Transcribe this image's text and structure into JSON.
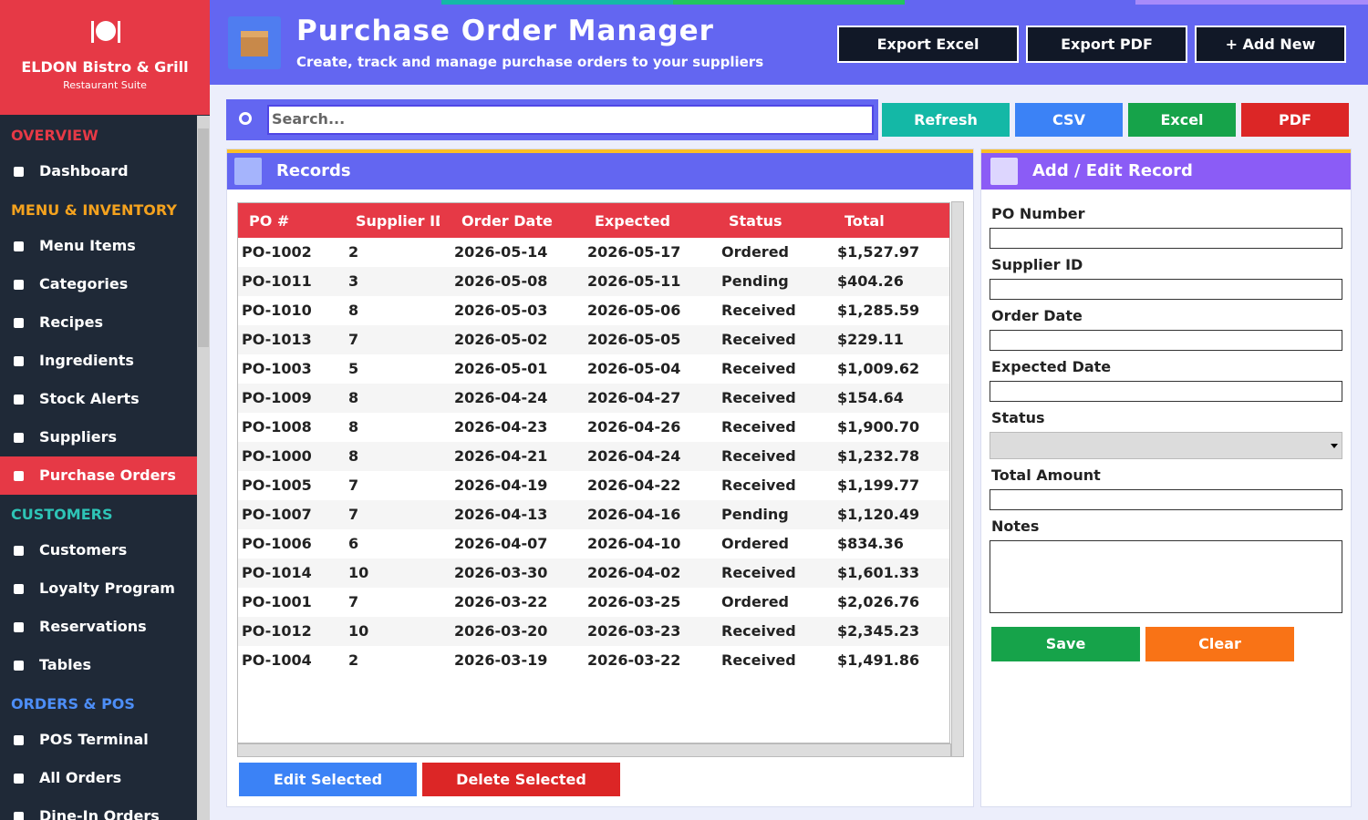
{
  "sidebar": {
    "brand": "ELDON Bistro & Grill",
    "subtitle": "Restaurant Suite",
    "active": "Purchase Orders",
    "sections": [
      {
        "title": "OVERVIEW",
        "color": "#e63946",
        "items": [
          "Dashboard"
        ]
      },
      {
        "title": "MENU & INVENTORY",
        "color": "#f4a21e",
        "items": [
          "Menu Items",
          "Categories",
          "Recipes",
          "Ingredients",
          "Stock Alerts",
          "Suppliers",
          "Purchase Orders"
        ]
      },
      {
        "title": "CUSTOMERS",
        "color": "#2ec4b6",
        "items": [
          "Customers",
          "Loyalty Program",
          "Reservations",
          "Tables"
        ]
      },
      {
        "title": "ORDERS & POS",
        "color": "#4d8ef7",
        "items": [
          "POS Terminal",
          "All Orders",
          "Dine-In Orders"
        ]
      }
    ]
  },
  "header": {
    "title": "Purchase Order Manager",
    "subtitle": "Create, track and manage purchase orders to your suppliers",
    "buttons": [
      "Export Excel",
      "Export PDF",
      "+ Add New"
    ]
  },
  "toolbar": {
    "search_placeholder": "Search...",
    "buttons": [
      {
        "label": "Refresh",
        "color": "#14b8a6"
      },
      {
        "label": "CSV",
        "color": "#3b82f6"
      },
      {
        "label": "Excel",
        "color": "#16a34a"
      },
      {
        "label": "PDF",
        "color": "#dc2626"
      }
    ]
  },
  "records": {
    "title": "Records",
    "columns": [
      "PO #",
      "Supplier ID",
      "Order Date",
      "Expected",
      "Status",
      "Total"
    ],
    "rows": [
      [
        "PO-1002",
        "2",
        "2026-05-14",
        "2026-05-17",
        "Ordered",
        "$1,527.97"
      ],
      [
        "PO-1011",
        "3",
        "2026-05-08",
        "2026-05-11",
        "Pending",
        "$404.26"
      ],
      [
        "PO-1010",
        "8",
        "2026-05-03",
        "2026-05-06",
        "Received",
        "$1,285.59"
      ],
      [
        "PO-1013",
        "7",
        "2026-05-02",
        "2026-05-05",
        "Received",
        "$229.11"
      ],
      [
        "PO-1003",
        "5",
        "2026-05-01",
        "2026-05-04",
        "Received",
        "$1,009.62"
      ],
      [
        "PO-1009",
        "8",
        "2026-04-24",
        "2026-04-27",
        "Received",
        "$154.64"
      ],
      [
        "PO-1008",
        "8",
        "2026-04-23",
        "2026-04-26",
        "Received",
        "$1,900.70"
      ],
      [
        "PO-1000",
        "8",
        "2026-04-21",
        "2026-04-24",
        "Received",
        "$1,232.78"
      ],
      [
        "PO-1005",
        "7",
        "2026-04-19",
        "2026-04-22",
        "Received",
        "$1,199.77"
      ],
      [
        "PO-1007",
        "7",
        "2026-04-13",
        "2026-04-16",
        "Pending",
        "$1,120.49"
      ],
      [
        "PO-1006",
        "6",
        "2026-04-07",
        "2026-04-10",
        "Ordered",
        "$834.36"
      ],
      [
        "PO-1014",
        "10",
        "2026-03-30",
        "2026-04-02",
        "Received",
        "$1,601.33"
      ],
      [
        "PO-1001",
        "7",
        "2026-03-22",
        "2026-03-25",
        "Ordered",
        "$2,026.76"
      ],
      [
        "PO-1012",
        "10",
        "2026-03-20",
        "2026-03-23",
        "Received",
        "$2,345.23"
      ],
      [
        "PO-1004",
        "2",
        "2026-03-19",
        "2026-03-22",
        "Received",
        "$1,491.86"
      ]
    ],
    "actions": [
      {
        "label": "Edit Selected",
        "color": "#3b82f6"
      },
      {
        "label": "Delete Selected",
        "color": "#dc2626"
      }
    ]
  },
  "form": {
    "title": "Add / Edit Record",
    "fields": [
      {
        "label": "PO Number",
        "input": "text"
      },
      {
        "label": "Supplier ID",
        "input": "text"
      },
      {
        "label": "Order Date",
        "input": "text"
      },
      {
        "label": "Expected Date",
        "input": "text"
      },
      {
        "label": "Status",
        "input": "select"
      },
      {
        "label": "Total Amount",
        "input": "text"
      },
      {
        "label": "Notes",
        "input": "textarea"
      }
    ],
    "buttons": [
      {
        "label": "Save",
        "color": "#16a34a"
      },
      {
        "label": "Clear",
        "color": "#f97316"
      }
    ]
  }
}
